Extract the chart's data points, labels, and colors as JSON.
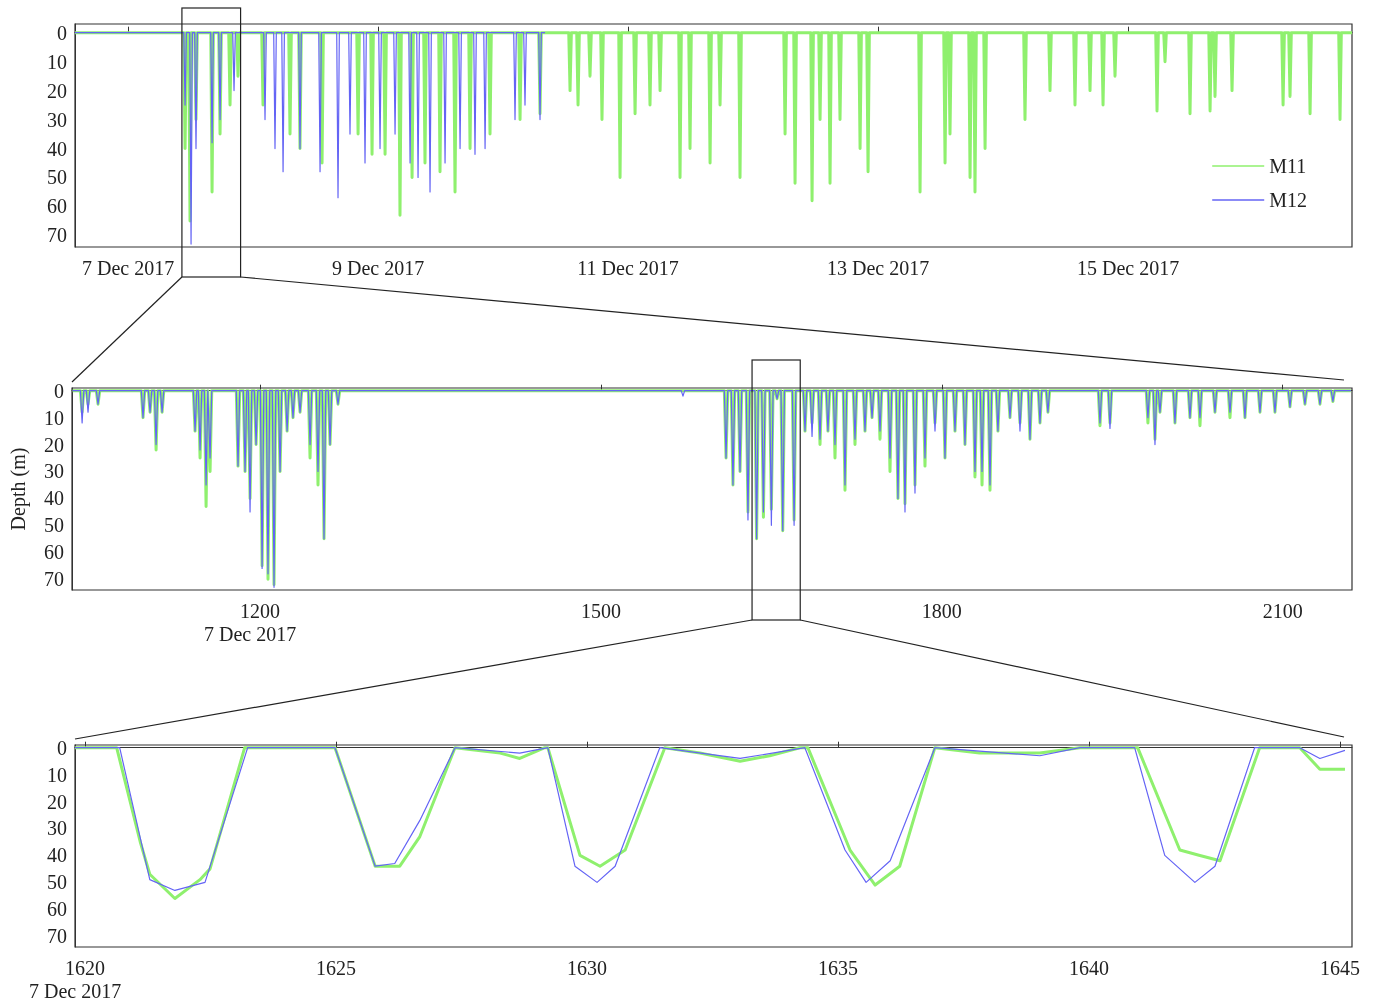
{
  "chart_data": [
    {
      "type": "line",
      "legend": "bottom right",
      "xlim": [
        "2017-12-06T13:49",
        "2017-12-16T19:00"
      ],
      "xticks": [
        {
          "value": "2017-12-07",
          "label": "7 Dec 2017"
        },
        {
          "value": "2017-12-09",
          "label": "9 Dec 2017"
        },
        {
          "value": "2017-12-11",
          "label": "11 Dec 2017"
        },
        {
          "value": "2017-12-13",
          "label": "13 Dec 2017"
        },
        {
          "value": "2017-12-15",
          "label": "15 Dec 2017"
        }
      ],
      "ylim": [
        74,
        -3
      ],
      "yticks": [
        0,
        10,
        20,
        30,
        40,
        50,
        60,
        70
      ],
      "series": [
        {
          "name": "M11",
          "color": "#8ff06e",
          "x": [
            "2017-12-06T13:49",
            "2017-12-07T10:42",
            "2017-12-07T10:57",
            "2017-12-07T11:12",
            "2017-12-07T11:39",
            "2017-12-07T11:54",
            "2017-12-07T12:09",
            "2017-12-07T12:48",
            "2017-12-07T13:03",
            "2017-12-07T13:18",
            "2017-12-07T15:53",
            "2017-12-07T16:08",
            "2017-12-07T16:23",
            "2017-12-07T17:25",
            "2017-12-07T17:40",
            "2017-12-07T17:55",
            "2017-12-07T19:20",
            "2017-12-07T19:35",
            "2017-12-07T19:50",
            "2017-12-07T20:52",
            "2017-12-07T21:07",
            "2017-12-07T21:22",
            "2017-12-08T01:40",
            "2017-12-08T01:55",
            "2017-12-08T02:10",
            "2017-12-08T06:51",
            "2017-12-08T07:06",
            "2017-12-08T07:21",
            "2017-12-08T08:46",
            "2017-12-08T09:01",
            "2017-12-08T09:16",
            "2017-12-08T13:00",
            "2017-12-08T13:15",
            "2017-12-08T13:30",
            "2017-12-08T19:55",
            "2017-12-08T20:10",
            "2017-12-08T20:25",
            "2017-12-08T22:36",
            "2017-12-08T22:51",
            "2017-12-08T23:06",
            "2017-12-09T01:06",
            "2017-12-09T01:21",
            "2017-12-09T01:36",
            "2017-12-09T03:58",
            "2017-12-09T04:13",
            "2017-12-09T04:28",
            "2017-12-09T06:17",
            "2017-12-09T06:32",
            "2017-12-09T06:47",
            "2017-12-09T08:46",
            "2017-12-09T09:01",
            "2017-12-09T09:16",
            "2017-12-09T11:39",
            "2017-12-09T11:54",
            "2017-12-09T12:09",
            "2017-12-09T14:32",
            "2017-12-09T14:47",
            "2017-12-09T15:02",
            "2017-12-09T17:25",
            "2017-12-09T17:40",
            "2017-12-09T17:55",
            "2017-12-09T21:15",
            "2017-12-09T21:30",
            "2017-12-09T21:45",
            "2017-12-10T03:01",
            "2017-12-10T03:16",
            "2017-12-10T03:31",
            "2017-12-10T06:51",
            "2017-12-10T07:06",
            "2017-12-10T07:21",
            "2017-12-10T12:37",
            "2017-12-10T12:52",
            "2017-12-10T13:07",
            "2017-12-10T14:09",
            "2017-12-10T14:24",
            "2017-12-10T14:39",
            "2017-12-10T16:27",
            "2017-12-10T16:42",
            "2017-12-10T16:57",
            "2017-12-10T18:45",
            "2017-12-10T19:00",
            "2017-12-10T19:15",
            "2017-12-10T22:13",
            "2017-12-10T22:28",
            "2017-12-10T22:43",
            "2017-12-11T01:06",
            "2017-12-11T01:21",
            "2017-12-11T01:36",
            "2017-12-11T03:58",
            "2017-12-11T04:13",
            "2017-12-11T04:28",
            "2017-12-11T05:54",
            "2017-12-11T06:09",
            "2017-12-11T06:24",
            "2017-12-11T09:44",
            "2017-12-11T09:59",
            "2017-12-11T10:14",
            "2017-12-11T11:39",
            "2017-12-11T11:54",
            "2017-12-11T12:09",
            "2017-12-11T15:30",
            "2017-12-11T15:45",
            "2017-12-11T16:00",
            "2017-12-11T17:25",
            "2017-12-11T17:40",
            "2017-12-11T17:55",
            "2017-12-11T21:15",
            "2017-12-11T21:30",
            "2017-12-11T21:45",
            "2017-12-12T05:54",
            "2017-12-12T06:09",
            "2017-12-12T06:24",
            "2017-12-12T07:49",
            "2017-12-12T08:04",
            "2017-12-12T08:19",
            "2017-12-12T11:05",
            "2017-12-12T11:20",
            "2017-12-12T11:35",
            "2017-12-12T12:37",
            "2017-12-12T12:52",
            "2017-12-12T13:07",
            "2017-12-12T14:32",
            "2017-12-12T14:47",
            "2017-12-12T15:02",
            "2017-12-12T16:27",
            "2017-12-12T16:42",
            "2017-12-12T16:57",
            "2017-12-12T20:18",
            "2017-12-12T20:33",
            "2017-12-12T20:48",
            "2017-12-12T21:50",
            "2017-12-12T22:05",
            "2017-12-12T22:20",
            "2017-12-13T07:49",
            "2017-12-13T08:04",
            "2017-12-13T08:19",
            "2017-12-13T12:37",
            "2017-12-13T12:52",
            "2017-12-13T13:07",
            "2017-12-13T13:34",
            "2017-12-13T13:49",
            "2017-12-13T14:04",
            "2017-12-13T17:25",
            "2017-12-13T17:40",
            "2017-12-13T17:55",
            "2017-12-13T18:22",
            "2017-12-13T18:37",
            "2017-12-13T18:52",
            "2017-12-13T20:18",
            "2017-12-13T20:33",
            "2017-12-13T20:48",
            "2017-12-14T03:58",
            "2017-12-14T04:13",
            "2017-12-14T04:28",
            "2017-12-14T08:46",
            "2017-12-14T09:01",
            "2017-12-14T09:16",
            "2017-12-14T13:34",
            "2017-12-14T13:49",
            "2017-12-14T14:04",
            "2017-12-14T16:27",
            "2017-12-14T16:42",
            "2017-12-14T16:57",
            "2017-12-14T18:57",
            "2017-12-14T19:12",
            "2017-12-14T19:27",
            "2017-12-14T21:15",
            "2017-12-14T21:30",
            "2017-12-14T21:45",
            "2017-12-15T05:19",
            "2017-12-15T05:34",
            "2017-12-15T05:49",
            "2017-12-15T06:51",
            "2017-12-15T07:06",
            "2017-12-15T07:21",
            "2017-12-15T11:39",
            "2017-12-15T11:54",
            "2017-12-15T12:09",
            "2017-12-15T15:30",
            "2017-12-15T15:45",
            "2017-12-15T16:00",
            "2017-12-15T16:27",
            "2017-12-15T16:42",
            "2017-12-15T16:57",
            "2017-12-15T19:43",
            "2017-12-15T19:58",
            "2017-12-15T20:13",
            "2017-12-16T05:31",
            "2017-12-16T05:46",
            "2017-12-16T06:01",
            "2017-12-16T06:51",
            "2017-12-16T07:06",
            "2017-12-16T07:21",
            "2017-12-16T10:42",
            "2017-12-16T10:57",
            "2017-12-16T11:12",
            "2017-12-16T16:27",
            "2017-12-16T16:42",
            "2017-12-16T16:57",
            "2017-12-16T19:00"
          ],
          "values": [
            0,
            0,
            40,
            0,
            0,
            65,
            0,
            0,
            30,
            0,
            0,
            55,
            0,
            0,
            35,
            0,
            0,
            25,
            0,
            0,
            15,
            0,
            0,
            25,
            0,
            0,
            35,
            0,
            0,
            40,
            0,
            0,
            45,
            0,
            0,
            35,
            0,
            0,
            42,
            0,
            0,
            42,
            0,
            0,
            63,
            0,
            0,
            50,
            0,
            0,
            45,
            0,
            0,
            48,
            0,
            0,
            55,
            0,
            0,
            40,
            0,
            0,
            35,
            0,
            0,
            30,
            0,
            0,
            28,
            0,
            0,
            20,
            0,
            0,
            25,
            0,
            0,
            15,
            0,
            0,
            30,
            0,
            0,
            50,
            0,
            0,
            28,
            0,
            0,
            25,
            0,
            0,
            20,
            0,
            0,
            50,
            0,
            0,
            40,
            0,
            0,
            45,
            0,
            0,
            25,
            0,
            0,
            50,
            0,
            0,
            35,
            0,
            0,
            52,
            0,
            0,
            58,
            0,
            0,
            30,
            0,
            0,
            52,
            0,
            0,
            30,
            0,
            0,
            40,
            0,
            0,
            48,
            0,
            0,
            55,
            0,
            0,
            45,
            0,
            0,
            35,
            0,
            0,
            50,
            0,
            0,
            55,
            0,
            0,
            40,
            0,
            0,
            30,
            0,
            0,
            20,
            0,
            0,
            25,
            0,
            0,
            20,
            0,
            0,
            25,
            0,
            0,
            15,
            0,
            0,
            27,
            0,
            0,
            10,
            0,
            0,
            28,
            0,
            0,
            27,
            0,
            0,
            22,
            0,
            0,
            20,
            0,
            0,
            25,
            0,
            0,
            22,
            0,
            0,
            28,
            0,
            0,
            30,
            0,
            0
          ]
        },
        {
          "name": "M12",
          "color": "#6464f5",
          "x": [
            "2017-12-06T13:49",
            "2017-12-07T10:42",
            "2017-12-07T10:57",
            "2017-12-07T11:12",
            "2017-12-07T11:51",
            "2017-12-07T12:06",
            "2017-12-07T12:21",
            "2017-12-07T12:48",
            "2017-12-07T13:03",
            "2017-12-07T13:18",
            "2017-12-07T15:53",
            "2017-12-07T16:08",
            "2017-12-07T16:23",
            "2017-12-07T17:25",
            "2017-12-07T17:40",
            "2017-12-07T17:55",
            "2017-12-07T20:06",
            "2017-12-07T20:21",
            "2017-12-07T20:36",
            "2017-12-08T02:03",
            "2017-12-08T02:18",
            "2017-12-08T02:33",
            "2017-12-08T03:58",
            "2017-12-08T04:13",
            "2017-12-08T04:28",
            "2017-12-08T05:31",
            "2017-12-08T05:46",
            "2017-12-08T06:01",
            "2017-12-08T08:46",
            "2017-12-08T09:01",
            "2017-12-08T09:16",
            "2017-12-08T12:37",
            "2017-12-08T12:52",
            "2017-12-08T13:07",
            "2017-12-08T16:04",
            "2017-12-08T16:19",
            "2017-12-08T16:34",
            "2017-12-08T18:22",
            "2017-12-08T18:37",
            "2017-12-08T18:52",
            "2017-12-08T21:15",
            "2017-12-08T21:30",
            "2017-12-08T21:45",
            "2017-12-09T00:08",
            "2017-12-09T00:23",
            "2017-12-09T00:38",
            "2017-12-09T03:01",
            "2017-12-09T03:16",
            "2017-12-09T03:31",
            "2017-12-09T05:54",
            "2017-12-09T06:09",
            "2017-12-09T06:24",
            "2017-12-09T07:26",
            "2017-12-09T07:41",
            "2017-12-09T07:56",
            "2017-12-09T09:44",
            "2017-12-09T09:59",
            "2017-12-09T10:14",
            "2017-12-09T12:37",
            "2017-12-09T12:52",
            "2017-12-09T13:07",
            "2017-12-09T15:30",
            "2017-12-09T15:45",
            "2017-12-09T16:00",
            "2017-12-09T18:22",
            "2017-12-09T18:37",
            "2017-12-09T18:52",
            "2017-12-09T20:18",
            "2017-12-09T20:33",
            "2017-12-09T20:48",
            "2017-12-10T02:03",
            "2017-12-10T02:18",
            "2017-12-10T02:33",
            "2017-12-10T03:58",
            "2017-12-10T04:13",
            "2017-12-10T04:28",
            "2017-12-10T06:51",
            "2017-12-10T07:06",
            "2017-12-10T07:21",
            "2017-12-10T08:04"
          ],
          "values": [
            0,
            0,
            25,
            0,
            0,
            73,
            0,
            0,
            40,
            0,
            0,
            38,
            0,
            0,
            30,
            0,
            0,
            20,
            0,
            0,
            30,
            0,
            0,
            40,
            0,
            0,
            48,
            0,
            0,
            40,
            0,
            0,
            48,
            0,
            0,
            57,
            0,
            0,
            35,
            0,
            0,
            45,
            0,
            0,
            40,
            0,
            0,
            35,
            0,
            0,
            45,
            0,
            0,
            50,
            0,
            0,
            55,
            0,
            0,
            45,
            0,
            0,
            40,
            0,
            0,
            42,
            0,
            0,
            40,
            0,
            0,
            30,
            0,
            0,
            25,
            0,
            0,
            30,
            0,
            0
          ]
        }
      ]
    },
    {
      "type": "line",
      "ylabel": "Depth (m)",
      "annotations": [
        "7 Dec 2017"
      ],
      "xlim": [
        1034.5,
        2161
      ],
      "xticks": [
        1200,
        1500,
        1800,
        2100
      ],
      "ylim": [
        74,
        -1
      ],
      "yticks": [
        0,
        10,
        20,
        30,
        40,
        50,
        60,
        70
      ],
      "x": [
        1035,
        1041.9,
        1043.4,
        1044.9,
        1047.1,
        1048.6,
        1050.1,
        1055.9,
        1057.4,
        1058.9,
        1095.5,
        1097,
        1098.5,
        1101.7,
        1103.2,
        1104.7,
        1107,
        1108.5,
        1110,
        1112.3,
        1113.8,
        1115.3,
        1141.3,
        1142.8,
        1144.3,
        1145.7,
        1147.2,
        1148.7,
        1151,
        1152.5,
        1154,
        1154.5,
        1156,
        1157.5,
        1179.1,
        1180.6,
        1182.1,
        1185.3,
        1186.8,
        1188.3,
        1189.7,
        1191.2,
        1192.7,
        1195,
        1196.5,
        1198,
        1200.3,
        1201.8,
        1203.3,
        1205.5,
        1207,
        1208.5,
        1210.8,
        1212.3,
        1213.8,
        1216.1,
        1217.6,
        1219.1,
        1222.3,
        1223.8,
        1225.3,
        1227.5,
        1229,
        1230.5,
        1233.7,
        1235.2,
        1236.7,
        1242.5,
        1244,
        1245.5,
        1249.5,
        1251,
        1252.5,
        1254.8,
        1256.3,
        1257.8,
        1260.1,
        1261.6,
        1263.1,
        1267.1,
        1268.6,
        1270.1,
        1570.7,
        1572.2,
        1573.7,
        1608.6,
        1610.1,
        1611.6,
        1614.7,
        1616.2,
        1617.7,
        1620.9,
        1622.4,
        1623.9,
        1627.9,
        1629.4,
        1630.9,
        1635.5,
        1637,
        1638.5,
        1641.5,
        1643,
        1644.5,
        1648.5,
        1650,
        1651.5,
        1653.5,
        1655,
        1656.5,
        1658.5,
        1660,
        1661.5,
        1668.5,
        1670,
        1671.5,
        1678.1,
        1679.6,
        1681.1,
        1684.3,
        1685.8,
        1687.3,
        1691.3,
        1692.8,
        1694.3,
        1698.3,
        1699.8,
        1701.3,
        1704.5,
        1706,
        1707.5,
        1713.3,
        1714.8,
        1716.3,
        1722.1,
        1723.6,
        1725.1,
        1730.9,
        1732.4,
        1733.9,
        1737.1,
        1738.6,
        1740.1,
        1744.1,
        1745.6,
        1747.1,
        1752.9,
        1754.4,
        1755.9,
        1759.9,
        1761.4,
        1762.9,
        1766.1,
        1767.6,
        1769.1,
        1774.9,
        1776.4,
        1777.9,
        1783.7,
        1785.2,
        1786.7,
        1792.5,
        1794,
        1795.5,
        1801.3,
        1802.8,
        1804.3,
        1810.1,
        1811.6,
        1813.1,
        1818.9,
        1820.4,
        1821.9,
        1827.7,
        1829.2,
        1830.7,
        1833.9,
        1835.4,
        1836.9,
        1840.9,
        1842.4,
        1843.9,
        1847.9,
        1849.4,
        1850.9,
        1858.5,
        1860,
        1861.5,
        1867.3,
        1868.8,
        1870.3,
        1876.1,
        1877.6,
        1879.1,
        1884.9,
        1886.4,
        1887.9,
        1891.9,
        1893.4,
        1894.9,
        1937.7,
        1939.2,
        1940.7,
        1946.5,
        1948,
        1949.5,
        1979.9,
        1981.4,
        1982.9,
        1986.1,
        1987.6,
        1989.1,
        1990.5,
        1992,
        1993.5,
        2003.7,
        2005.2,
        2006.7,
        2016.9,
        2018.4,
        2019.9,
        2025.7,
        2027.2,
        2028.7,
        2038.9,
        2040.4,
        2041.9,
        2052.1,
        2053.6,
        2055.1,
        2065.3,
        2066.8,
        2068.3,
        2078.5,
        2080,
        2081.5,
        2091.7,
        2093.2,
        2094.7,
        2104.9,
        2106.4,
        2107.9,
        2118.1,
        2119.6,
        2121.1,
        2131.3,
        2132.8,
        2134.3,
        2142.7,
        2144.2,
        2145.7,
        2160
      ],
      "series": [
        {
          "color": "#8ff06e",
          "values": [
            0,
            0,
            8,
            0,
            0,
            5,
            0,
            0,
            5,
            0,
            0,
            10,
            0,
            0,
            8,
            0,
            0,
            22,
            0,
            0,
            8,
            0,
            0,
            15,
            0,
            0,
            25,
            0,
            0,
            43,
            0,
            0,
            30,
            0,
            0,
            28,
            0,
            0,
            30,
            0,
            0,
            40,
            0,
            0,
            20,
            0,
            0,
            65,
            0,
            0,
            70,
            0,
            0,
            72,
            0,
            0,
            30,
            0,
            0,
            15,
            0,
            0,
            10,
            0,
            0,
            8,
            0,
            0,
            25,
            0,
            0,
            35,
            0,
            0,
            55,
            0,
            0,
            20,
            0,
            0,
            5,
            0,
            0,
            0,
            0,
            0,
            25,
            0,
            0,
            35,
            0,
            0,
            30,
            0,
            0,
            45,
            0,
            0,
            55,
            0,
            0,
            47,
            0,
            0,
            44,
            0,
            0,
            3,
            0,
            0,
            52,
            0,
            0,
            48,
            0,
            0,
            15,
            0,
            0,
            12,
            0,
            0,
            20,
            0,
            0,
            15,
            0,
            0,
            25,
            0,
            0,
            37,
            0,
            0,
            20,
            0,
            0,
            15,
            0,
            0,
            10,
            0,
            0,
            18,
            0,
            0,
            30,
            0,
            0,
            40,
            0,
            0,
            42,
            0,
            0,
            35,
            0,
            0,
            28,
            0,
            0,
            12,
            0,
            0,
            25,
            0,
            0,
            15,
            0,
            0,
            20,
            0,
            0,
            32,
            0,
            0,
            35,
            0,
            0,
            37,
            0,
            0,
            15,
            0,
            0,
            10,
            0,
            0,
            12,
            0,
            0,
            18,
            0,
            0,
            12,
            0,
            0,
            8,
            0,
            0,
            13,
            0,
            0,
            12,
            0,
            0,
            12,
            0,
            0,
            18,
            0,
            0,
            8,
            0,
            0,
            12,
            0,
            0,
            10,
            0,
            0,
            13,
            0,
            0,
            8,
            0,
            0,
            10,
            0,
            0,
            10,
            0,
            0,
            8,
            0,
            0,
            8,
            0,
            0,
            6,
            0,
            0,
            5,
            0,
            0,
            5,
            0,
            0,
            4,
            0,
            0
          ]
        },
        {
          "color": "#6464f5",
          "values": [
            0,
            0,
            12,
            0,
            0,
            8,
            0,
            0,
            5,
            0,
            0,
            10,
            0,
            0,
            8,
            0,
            0,
            20,
            0,
            0,
            8,
            0,
            0,
            15,
            0,
            0,
            22,
            0,
            0,
            35,
            0,
            0,
            25,
            0,
            0,
            28,
            0,
            0,
            30,
            0,
            0,
            45,
            0,
            0,
            20,
            0,
            0,
            66,
            0,
            0,
            68,
            0,
            0,
            73,
            0,
            0,
            30,
            0,
            0,
            15,
            0,
            0,
            10,
            0,
            0,
            8,
            0,
            0,
            20,
            0,
            0,
            30,
            0,
            0,
            55,
            0,
            0,
            20,
            0,
            0,
            5,
            0,
            0,
            2,
            0,
            0,
            25,
            0,
            0,
            35,
            0,
            0,
            30,
            0,
            0,
            48,
            0,
            0,
            55,
            0,
            0,
            45,
            0,
            0,
            50,
            0,
            0,
            3,
            0,
            0,
            52,
            0,
            0,
            50,
            0,
            0,
            15,
            0,
            0,
            17,
            0,
            0,
            18,
            0,
            0,
            15,
            0,
            0,
            20,
            0,
            0,
            35,
            0,
            0,
            18,
            0,
            0,
            15,
            0,
            0,
            10,
            0,
            0,
            15,
            0,
            0,
            25,
            0,
            0,
            40,
            0,
            0,
            45,
            0,
            0,
            38,
            0,
            0,
            25,
            0,
            0,
            15,
            0,
            0,
            25,
            0,
            0,
            15,
            0,
            0,
            20,
            0,
            0,
            30,
            0,
            0,
            30,
            0,
            0,
            35,
            0,
            0,
            15,
            0,
            0,
            10,
            0,
            0,
            15,
            0,
            0,
            18,
            0,
            0,
            12,
            0,
            0,
            8,
            0,
            0,
            12,
            0,
            0,
            14,
            0,
            0,
            10,
            0,
            0,
            20,
            0,
            0,
            8,
            0,
            0,
            12,
            0,
            0,
            10,
            0,
            0,
            10,
            0,
            0,
            8,
            0,
            0,
            8,
            0,
            0,
            10,
            0,
            0,
            8,
            0,
            0,
            8,
            0,
            0,
            6,
            0,
            0,
            5,
            0,
            0,
            5,
            0,
            0,
            4,
            0,
            0
          ]
        }
      ]
    },
    {
      "type": "line",
      "annotations": [
        "7 Dec 2017"
      ],
      "xlim": [
        1619.8,
        1645.24
      ],
      "xticks": [
        1620,
        1625,
        1630,
        1635,
        1640,
        1645
      ],
      "ylim": [
        74,
        -1
      ],
      "yticks": [
        0,
        10,
        20,
        30,
        40,
        50,
        60,
        70
      ],
      "series": [
        {
          "color": "#8ff06e",
          "x": [
            1619.8,
            1620.63,
            1621.1,
            1621.29,
            1621.79,
            1622.29,
            1622.49,
            1623.18,
            1624.98,
            1625.78,
            1626.27,
            1626.67,
            1627.37,
            1628.27,
            1628.66,
            1629.16,
            1629.22,
            1629.86,
            1630.26,
            1630.76,
            1631.55,
            1632.25,
            1633.05,
            1633.64,
            1634.24,
            1634.4,
            1635.24,
            1635.74,
            1636.23,
            1636.93,
            1637.82,
            1639.02,
            1639.82,
            1640.97,
            1641.81,
            1642.21,
            1642.61,
            1643.4,
            1644.2,
            1644.6,
            1645.1
          ],
          "values": [
            0,
            0,
            35,
            47,
            56,
            49,
            45,
            0,
            0,
            44,
            44,
            33,
            0,
            2,
            4,
            0,
            0,
            40,
            44,
            38,
            0,
            2,
            5,
            3,
            0,
            0,
            38,
            51,
            44,
            0,
            2,
            2,
            0,
            0,
            38,
            40,
            42,
            0,
            0,
            8,
            8
          ]
        },
        {
          "color": "#6464f5",
          "x": [
            1619.8,
            1620.69,
            1621.29,
            1621.79,
            1622.39,
            1623.24,
            1624.98,
            1625.78,
            1626.17,
            1626.67,
            1627.37,
            1628.66,
            1629.22,
            1629.76,
            1630.2,
            1630.56,
            1631.45,
            1633.05,
            1634.34,
            1635.14,
            1635.56,
            1636.04,
            1636.93,
            1639.02,
            1639.82,
            1640.91,
            1641.51,
            1642.11,
            1642.51,
            1643.3,
            1644.2,
            1644.6,
            1645.1
          ],
          "values": [
            0,
            0,
            49,
            53,
            50,
            0,
            0,
            44,
            43,
            27,
            0,
            2,
            0,
            44,
            50,
            44,
            0,
            4,
            0,
            38,
            50,
            42,
            0,
            3,
            0,
            0,
            40,
            50,
            44,
            0,
            0,
            4,
            1
          ]
        }
      ]
    }
  ]
}
